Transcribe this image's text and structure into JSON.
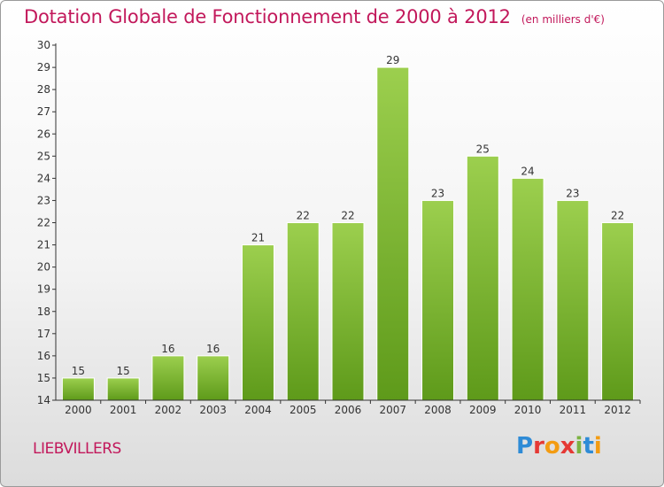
{
  "header": {
    "title": "Dotation Globale de Fonctionnement de 2000 à 2012",
    "subtitle": "(en milliers d'€)"
  },
  "footer": {
    "commune": "LIEBVILLERS",
    "logo": {
      "text": "Proxiti",
      "letters": [
        {
          "ch": "P",
          "color": "#2e8bd6"
        },
        {
          "ch": "r",
          "color": "#e53935"
        },
        {
          "ch": "o",
          "color": "#f39c12"
        },
        {
          "ch": "x",
          "color": "#e53935"
        },
        {
          "ch": "i",
          "color": "#7cb342"
        },
        {
          "ch": "t",
          "color": "#2e8bd6"
        },
        {
          "ch": "i",
          "color": "#f39c12"
        }
      ]
    }
  },
  "chart_data": {
    "type": "bar",
    "title": "Dotation Globale de Fonctionnement de 2000 à 2012",
    "subtitle": "(en milliers d'€)",
    "categories": [
      "2000",
      "2001",
      "2002",
      "2003",
      "2004",
      "2005",
      "2006",
      "2007",
      "2008",
      "2009",
      "2010",
      "2011",
      "2012"
    ],
    "values": [
      15,
      15,
      16,
      16,
      21,
      22,
      22,
      29,
      23,
      25,
      24,
      23,
      22
    ],
    "ylim": [
      14,
      30
    ],
    "yticks": [
      14,
      15,
      16,
      17,
      18,
      19,
      20,
      21,
      22,
      23,
      24,
      25,
      26,
      27,
      28,
      29,
      30
    ],
    "grid": false,
    "data_labels": true,
    "colors": {
      "bar_light": "#9ccf4e",
      "bar_dark": "#5e9a1a",
      "axis": "#333333",
      "label": "#333333"
    }
  }
}
